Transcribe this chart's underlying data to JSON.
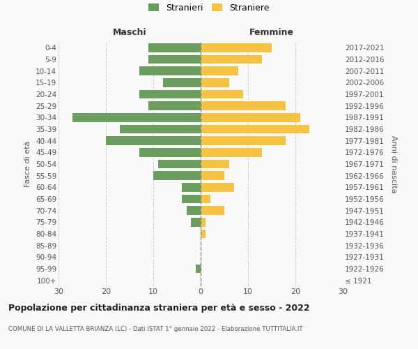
{
  "age_groups": [
    "100+",
    "95-99",
    "90-94",
    "85-89",
    "80-84",
    "75-79",
    "70-74",
    "65-69",
    "60-64",
    "55-59",
    "50-54",
    "45-49",
    "40-44",
    "35-39",
    "30-34",
    "25-29",
    "20-24",
    "15-19",
    "10-14",
    "5-9",
    "0-4"
  ],
  "birth_years": [
    "≤ 1921",
    "1922-1926",
    "1927-1931",
    "1932-1936",
    "1937-1941",
    "1942-1946",
    "1947-1951",
    "1952-1956",
    "1957-1961",
    "1962-1966",
    "1967-1971",
    "1972-1976",
    "1977-1981",
    "1982-1986",
    "1987-1991",
    "1992-1996",
    "1997-2001",
    "2002-2006",
    "2007-2011",
    "2012-2016",
    "2017-2021"
  ],
  "maschi": [
    0,
    1,
    0,
    0,
    0,
    2,
    3,
    4,
    4,
    10,
    9,
    13,
    20,
    17,
    27,
    11,
    13,
    8,
    13,
    11,
    11
  ],
  "femmine": [
    0,
    0,
    0,
    0,
    1,
    1,
    5,
    2,
    7,
    5,
    6,
    13,
    18,
    23,
    21,
    18,
    9,
    6,
    8,
    13,
    15
  ],
  "maschi_color": "#6b9e5e",
  "femmine_color": "#f5c242",
  "background_color": "#f9f9f9",
  "grid_color": "#cccccc",
  "title": "Popolazione per cittadinanza straniera per età e sesso - 2022",
  "subtitle": "COMUNE DI LA VALLETTA BRIANZA (LC) - Dati ISTAT 1° gennaio 2022 - Elaborazione TUTTITALIA.IT",
  "xlabel_left": "Maschi",
  "xlabel_right": "Femmine",
  "ylabel_left": "Fasce di età",
  "ylabel_right": "Anni di nascita",
  "xlim": 30,
  "legend_labels": [
    "Stranieri",
    "Straniere"
  ]
}
